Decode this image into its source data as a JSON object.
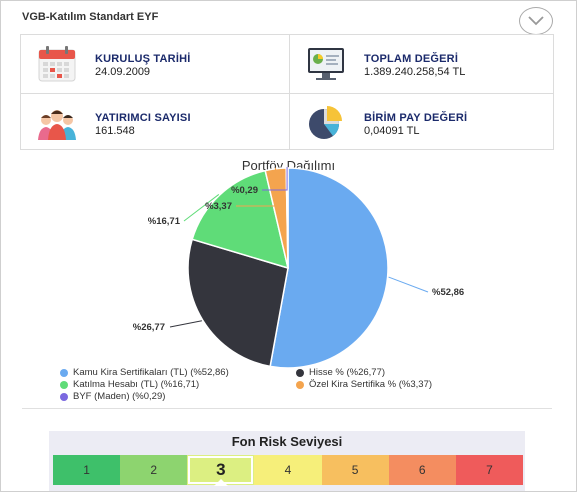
{
  "header": {
    "fund_title": "VGB-Katılım Standart EYF"
  },
  "info": {
    "founding": {
      "label": "KURULUŞ TARİHİ",
      "value": "24.09.2009"
    },
    "total": {
      "label": "TOPLAM DEĞERİ",
      "value": "1.389.240.258,54 TL"
    },
    "investors": {
      "label": "YATIRIMCI SAYISI",
      "value": "161.548"
    },
    "unit": {
      "label": "BİRİM PAY DEĞERİ",
      "value": "0,04091 TL"
    }
  },
  "portfolio": {
    "title": "Portföy Dağılımı",
    "slice_labels": [
      "%52,86",
      "%26,77",
      "%16,71",
      "%3,37",
      "%0,29"
    ],
    "legend": [
      {
        "label": "Kamu Kira Sertifikaları (TL) (%52,86)",
        "color": "#6aaaf0"
      },
      {
        "label": "Hisse % (%26,77)",
        "color": "#34353d"
      },
      {
        "label": "Katılma Hesabı (TL) (%16,71)",
        "color": "#5fdc78"
      },
      {
        "label": "Özel Kira Sertifika % (%3,37)",
        "color": "#f4a44e"
      },
      {
        "label": "BYF (Maden) (%0,29)",
        "color": "#7b68e0"
      }
    ]
  },
  "chart_data": {
    "type": "pie",
    "title": "Portföy Dağılımı",
    "categories": [
      "Kamu Kira Sertifikaları (TL)",
      "Hisse %",
      "Katılma Hesabı (TL)",
      "Özel Kira Sertifika %",
      "BYF (Maden)"
    ],
    "values": [
      52.86,
      26.77,
      16.71,
      3.37,
      0.29
    ],
    "colors": [
      "#6aaaf0",
      "#34353d",
      "#5fdc78",
      "#f4a44e",
      "#7b68e0"
    ],
    "legend_position": "bottom"
  },
  "risk": {
    "title": "Fon Risk Seviyesi",
    "levels": [
      "1",
      "2",
      "3",
      "4",
      "5",
      "6",
      "7"
    ],
    "colors": [
      "#3ec06a",
      "#8dd46f",
      "#dcef82",
      "#f6ef7a",
      "#f7bf5f",
      "#f48d60",
      "#ef5b5b"
    ],
    "current": "3"
  }
}
